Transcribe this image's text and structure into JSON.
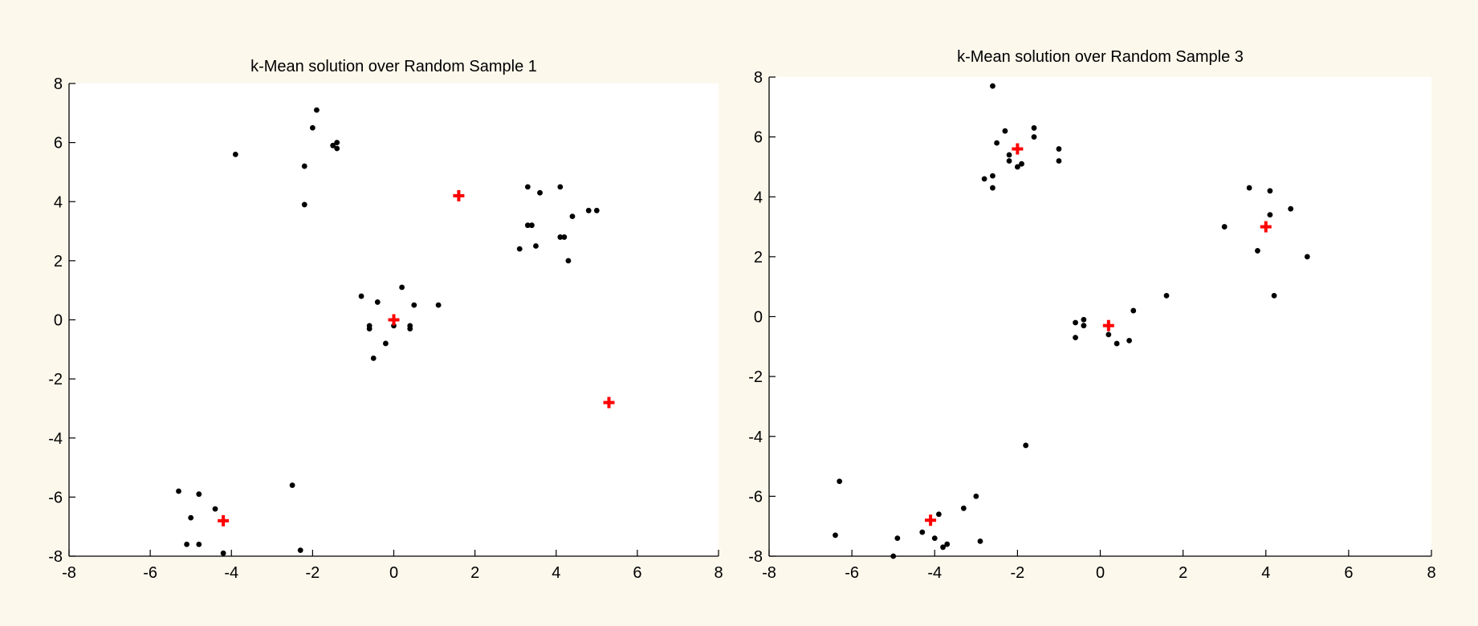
{
  "colors": {
    "figure_background": "#fcf8ec",
    "axes_background": "#ffffff",
    "point": "#000000",
    "centroid": "#ff0000"
  },
  "chart_data": [
    {
      "type": "scatter",
      "title": "k-Mean solution over Random Sample 1",
      "xlabel": "",
      "ylabel": "",
      "xlim": [
        -8,
        8
      ],
      "ylim": [
        -8,
        8
      ],
      "xticks": [
        -8,
        -6,
        -4,
        -2,
        0,
        2,
        4,
        6,
        8
      ],
      "yticks": [
        -8,
        -6,
        -4,
        -2,
        0,
        2,
        4,
        6,
        8
      ],
      "grid": false,
      "series": [
        {
          "marker": "dot",
          "color": "#000000",
          "points": [
            [
              -1.9,
              7.1
            ],
            [
              -2.0,
              6.5
            ],
            [
              -1.5,
              5.9
            ],
            [
              -1.4,
              6.0
            ],
            [
              -1.4,
              5.8
            ],
            [
              -3.9,
              5.6
            ],
            [
              -2.2,
              5.2
            ],
            [
              -2.2,
              3.9
            ],
            [
              3.3,
              4.5
            ],
            [
              3.6,
              4.3
            ],
            [
              4.1,
              4.5
            ],
            [
              4.4,
              3.5
            ],
            [
              4.8,
              3.7
            ],
            [
              5.0,
              3.7
            ],
            [
              3.3,
              3.2
            ],
            [
              3.4,
              3.2
            ],
            [
              3.5,
              2.5
            ],
            [
              3.1,
              2.4
            ],
            [
              4.1,
              2.8
            ],
            [
              4.2,
              2.8
            ],
            [
              4.3,
              2.0
            ],
            [
              0.2,
              1.1
            ],
            [
              -0.8,
              0.8
            ],
            [
              -0.4,
              0.6
            ],
            [
              0.5,
              0.5
            ],
            [
              1.1,
              0.5
            ],
            [
              -0.6,
              -0.2
            ],
            [
              -0.6,
              -0.3
            ],
            [
              0.0,
              -0.2
            ],
            [
              0.4,
              -0.2
            ],
            [
              0.4,
              -0.3
            ],
            [
              -0.2,
              -0.8
            ],
            [
              -0.5,
              -1.3
            ],
            [
              -5.3,
              -5.8
            ],
            [
              -4.8,
              -5.9
            ],
            [
              -4.4,
              -6.4
            ],
            [
              -5.0,
              -6.7
            ],
            [
              -5.1,
              -7.6
            ],
            [
              -4.8,
              -7.6
            ],
            [
              -4.2,
              -7.9
            ],
            [
              -2.5,
              -5.6
            ],
            [
              -2.3,
              -7.8
            ]
          ]
        },
        {
          "marker": "plus",
          "color": "#ff0000",
          "points": [
            [
              1.6,
              4.2
            ],
            [
              0.0,
              0.0
            ],
            [
              5.3,
              -2.8
            ],
            [
              -4.2,
              -6.8
            ]
          ]
        }
      ]
    },
    {
      "type": "scatter",
      "title": "k-Mean solution over Random Sample 3",
      "xlabel": "",
      "ylabel": "",
      "xlim": [
        -8,
        8
      ],
      "ylim": [
        -8,
        8
      ],
      "xticks": [
        -8,
        -6,
        -4,
        -2,
        0,
        2,
        4,
        6,
        8
      ],
      "yticks": [
        -8,
        -6,
        -4,
        -2,
        0,
        2,
        4,
        6,
        8
      ],
      "grid": false,
      "series": [
        {
          "marker": "dot",
          "color": "#000000",
          "points": [
            [
              -2.6,
              7.7
            ],
            [
              -2.3,
              6.2
            ],
            [
              -1.6,
              6.3
            ],
            [
              -1.6,
              6.0
            ],
            [
              -2.5,
              5.8
            ],
            [
              -2.2,
              5.4
            ],
            [
              -1.0,
              5.6
            ],
            [
              -2.2,
              5.2
            ],
            [
              -1.9,
              5.1
            ],
            [
              -1.0,
              5.2
            ],
            [
              -2.0,
              5.0
            ],
            [
              -2.6,
              4.7
            ],
            [
              -2.8,
              4.6
            ],
            [
              -2.6,
              4.3
            ],
            [
              3.6,
              4.3
            ],
            [
              4.1,
              4.2
            ],
            [
              4.6,
              3.6
            ],
            [
              4.1,
              3.4
            ],
            [
              3.0,
              3.0
            ],
            [
              3.8,
              2.2
            ],
            [
              5.0,
              2.0
            ],
            [
              4.2,
              0.7
            ],
            [
              1.6,
              0.7
            ],
            [
              0.8,
              0.2
            ],
            [
              -0.4,
              -0.1
            ],
            [
              -0.6,
              -0.2
            ],
            [
              -0.4,
              -0.3
            ],
            [
              0.2,
              -0.6
            ],
            [
              -0.6,
              -0.7
            ],
            [
              0.7,
              -0.8
            ],
            [
              0.4,
              -0.9
            ],
            [
              -1.8,
              -4.3
            ],
            [
              -6.3,
              -5.5
            ],
            [
              -3.0,
              -6.0
            ],
            [
              -3.3,
              -6.4
            ],
            [
              -3.9,
              -6.6
            ],
            [
              -6.4,
              -7.3
            ],
            [
              -4.3,
              -7.2
            ],
            [
              -4.9,
              -7.4
            ],
            [
              -4.0,
              -7.4
            ],
            [
              -2.9,
              -7.5
            ],
            [
              -3.7,
              -7.6
            ],
            [
              -3.8,
              -7.7
            ],
            [
              -5.0,
              -8.0
            ]
          ]
        },
        {
          "marker": "plus",
          "color": "#ff0000",
          "points": [
            [
              -2.0,
              5.6
            ],
            [
              4.0,
              3.0
            ],
            [
              0.2,
              -0.3
            ],
            [
              -4.1,
              -6.8
            ]
          ]
        }
      ]
    }
  ]
}
